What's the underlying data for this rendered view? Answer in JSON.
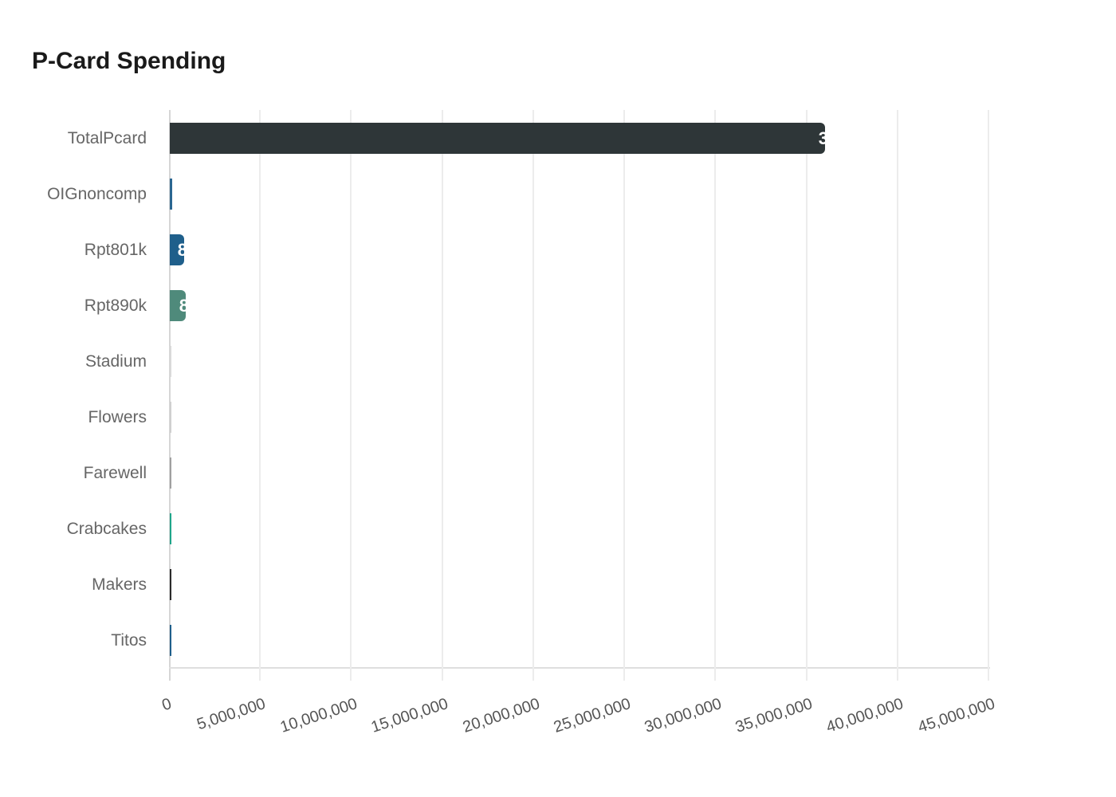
{
  "chart_data": {
    "type": "bar",
    "orientation": "horizontal",
    "title": "P-Card Spending",
    "xlabel": "",
    "ylabel": "",
    "xlim": [
      0,
      45000000
    ],
    "grid": true,
    "legend": null,
    "categories": [
      "TotalPcard",
      "OIGnoncomp",
      "Rpt801k",
      "Rpt890k",
      "Stadium",
      "Flowers",
      "Farewell",
      "Crabcakes",
      "Makers",
      "Titos"
    ],
    "values": [
      36000000,
      150000,
      801000,
      890000,
      20000,
      15000,
      20000,
      20000,
      20000,
      20000
    ],
    "colors": [
      "#2e3638",
      "#2a6691",
      "#1f5f8b",
      "#4f8a7b",
      "#d9d9d9",
      "#cfcfcf",
      "#a0a0a0",
      "#1fa58a",
      "#2b2b2b",
      "#1f5f8b"
    ],
    "value_label_prefixes": [
      "3",
      "",
      "8",
      "8",
      "",
      "",
      "",
      "",
      "",
      ""
    ],
    "x_ticks": [
      "0",
      "5,000,000",
      "10,000,000",
      "15,000,000",
      "20,000,000",
      "25,000,000",
      "30,000,000",
      "35,000,000",
      "40,000,000",
      "45,000,000"
    ]
  },
  "header": {
    "title": "P-Card Spending"
  }
}
